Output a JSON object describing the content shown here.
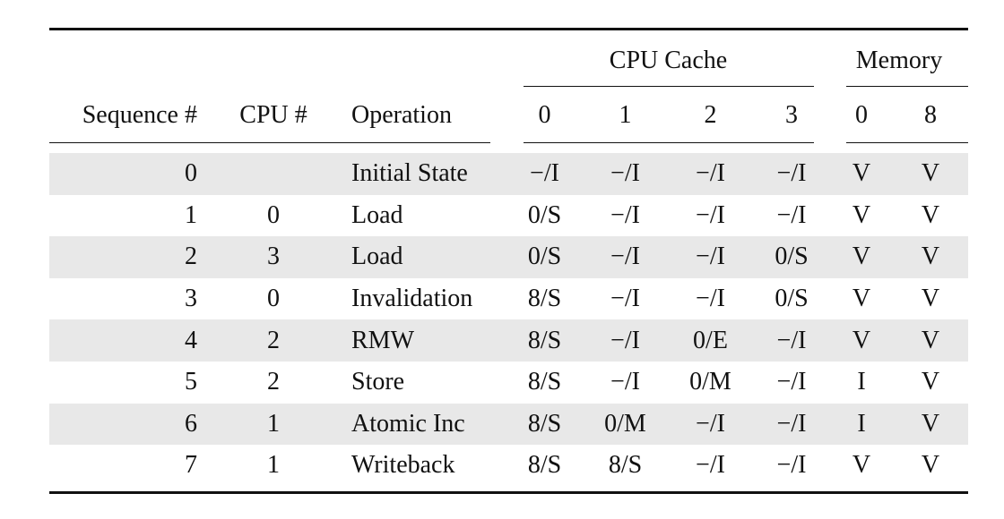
{
  "table": {
    "group_headers": {
      "cache": "CPU Cache",
      "memory": "Memory"
    },
    "columns": {
      "sequence": "Sequence #",
      "cpu": "CPU #",
      "operation": "Operation",
      "cache": [
        "0",
        "1",
        "2",
        "3"
      ],
      "memory": [
        "0",
        "8"
      ]
    },
    "rows": [
      {
        "seq": "0",
        "cpu": "",
        "op": "Initial State",
        "cache": [
          "−/I",
          "−/I",
          "−/I",
          "−/I"
        ],
        "mem": [
          "V",
          "V"
        ]
      },
      {
        "seq": "1",
        "cpu": "0",
        "op": "Load",
        "cache": [
          "0/S",
          "−/I",
          "−/I",
          "−/I"
        ],
        "mem": [
          "V",
          "V"
        ]
      },
      {
        "seq": "2",
        "cpu": "3",
        "op": "Load",
        "cache": [
          "0/S",
          "−/I",
          "−/I",
          "0/S"
        ],
        "mem": [
          "V",
          "V"
        ]
      },
      {
        "seq": "3",
        "cpu": "0",
        "op": "Invalidation",
        "cache": [
          "8/S",
          "−/I",
          "−/I",
          "0/S"
        ],
        "mem": [
          "V",
          "V"
        ]
      },
      {
        "seq": "4",
        "cpu": "2",
        "op": "RMW",
        "cache": [
          "8/S",
          "−/I",
          "0/E",
          "−/I"
        ],
        "mem": [
          "V",
          "V"
        ]
      },
      {
        "seq": "5",
        "cpu": "2",
        "op": "Store",
        "cache": [
          "8/S",
          "−/I",
          "0/M",
          "−/I"
        ],
        "mem": [
          "I",
          "V"
        ]
      },
      {
        "seq": "6",
        "cpu": "1",
        "op": "Atomic Inc",
        "cache": [
          "8/S",
          "0/M",
          "−/I",
          "−/I"
        ],
        "mem": [
          "I",
          "V"
        ]
      },
      {
        "seq": "7",
        "cpu": "1",
        "op": "Writeback",
        "cache": [
          "8/S",
          "8/S",
          "−/I",
          "−/I"
        ],
        "mem": [
          "V",
          "V"
        ]
      }
    ],
    "stripe_color": "#e8e8e8"
  }
}
